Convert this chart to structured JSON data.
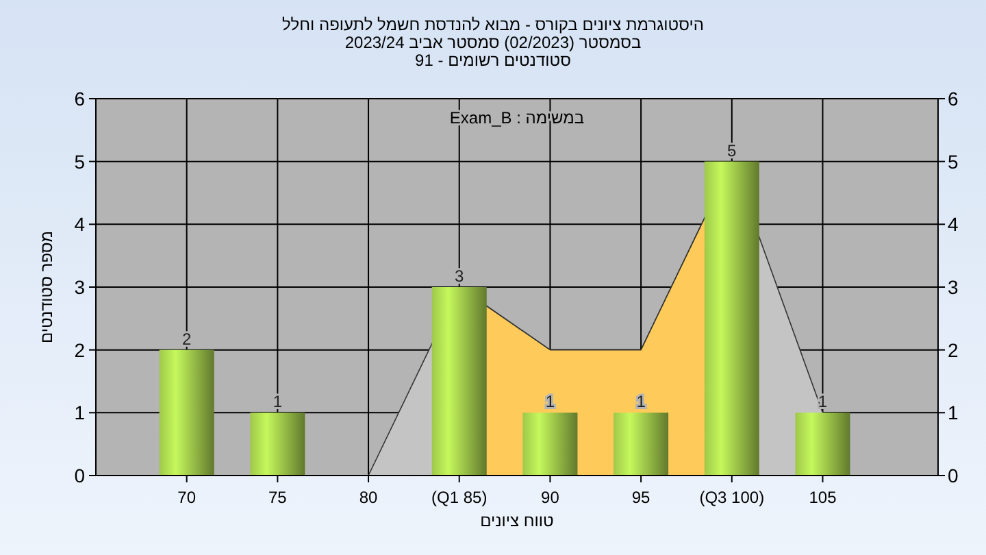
{
  "chart_data": {
    "type": "bar",
    "title": "היסטוגרמת ציונים בקורס - מבוא להנדסת חשמל לתעופה וחלל\nבסמסטר  (02/2023)  סמסטר אביב 2023/24\nסטודנטים רשומים - 91",
    "annotations": [
      "במשימה : Exam_B"
    ],
    "xlabel": "טווח ציונים",
    "ylabel": "מספר סטודנטים",
    "categories": [
      "70",
      "75",
      "80",
      "(Q1 85)",
      "90",
      "95",
      "(Q3 100)",
      "105"
    ],
    "series": [
      {
        "type": "area",
        "color": "#c4c4c4",
        "values": [
          0,
          0,
          0,
          3,
          2,
          2,
          5,
          1
        ]
      },
      {
        "type": "area",
        "color": "#fecb5a",
        "values": [
          null,
          null,
          null,
          3,
          2,
          2,
          5,
          null
        ]
      },
      {
        "color": "#9fc84a",
        "values": [
          2,
          1,
          0,
          3,
          1,
          1,
          5,
          1
        ],
        "value_labels": [
          "2",
          "1",
          null,
          "3",
          "1",
          "1",
          "5",
          "1"
        ]
      }
    ],
    "ylim": [
      0,
      6
    ],
    "yticks": [
      0,
      1,
      2,
      3,
      4,
      5,
      6
    ],
    "y2lim": [
      0,
      6
    ],
    "y2ticks": [
      0,
      1,
      2,
      3,
      4,
      5,
      6
    ],
    "grid": true
  }
}
